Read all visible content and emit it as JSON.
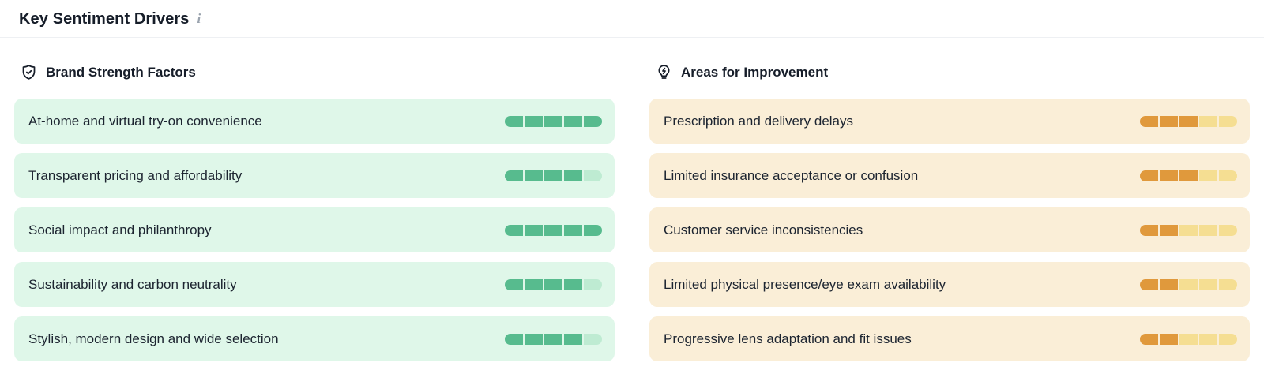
{
  "header": {
    "title": "Key Sentiment Drivers",
    "info_icon": "info-icon"
  },
  "colors": {
    "green_filled": "#57BB8E",
    "green_empty": "#BEEBD2",
    "green_bg": "#DFF7E9",
    "orange_filled": "#E0993C",
    "orange_empty": "#F5DE92",
    "orange_bg": "#FAEED7",
    "text": "#1C2430",
    "divider": "#EEF0F3"
  },
  "columns": {
    "strengths": {
      "title": "Brand Strength Factors",
      "icon": "shield-check-icon",
      "items": [
        {
          "label": "At-home and virtual try-on convenience",
          "score": 5,
          "max": 5
        },
        {
          "label": "Transparent pricing and affordability",
          "score": 4,
          "max": 5
        },
        {
          "label": "Social impact and philanthropy",
          "score": 5,
          "max": 5
        },
        {
          "label": "Sustainability and carbon neutrality",
          "score": 4,
          "max": 5
        },
        {
          "label": "Stylish, modern design and wide selection",
          "score": 4,
          "max": 5
        }
      ]
    },
    "improvements": {
      "title": "Areas for Improvement",
      "icon": "lightbulb-icon",
      "items": [
        {
          "label": "Prescription and delivery delays",
          "score": 3,
          "max": 5
        },
        {
          "label": "Limited insurance acceptance or confusion",
          "score": 3,
          "max": 5
        },
        {
          "label": "Customer service inconsistencies",
          "score": 2,
          "max": 5
        },
        {
          "label": "Limited physical presence/eye exam availability",
          "score": 2,
          "max": 5
        },
        {
          "label": "Progressive lens adaptation and fit issues",
          "score": 2,
          "max": 5
        }
      ]
    }
  }
}
